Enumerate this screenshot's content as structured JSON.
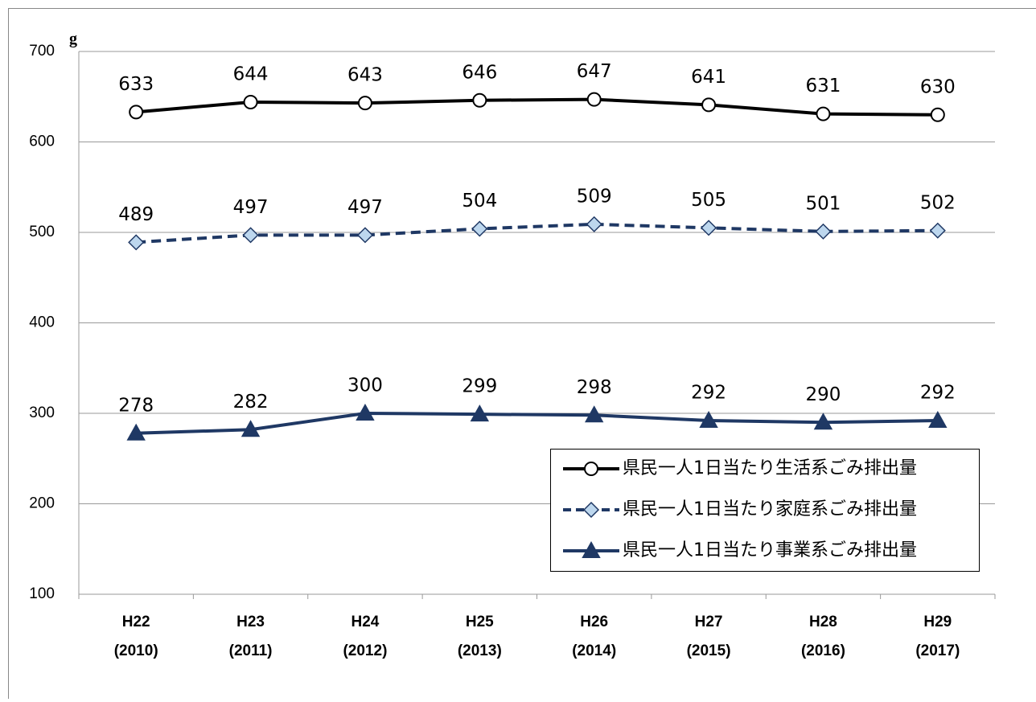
{
  "chart_data": {
    "type": "line",
    "ylabel": "g",
    "categories": [
      [
        "H22",
        "(2010)"
      ],
      [
        "H23",
        "(2011)"
      ],
      [
        "H24",
        "(2012)"
      ],
      [
        "H25",
        "(2013)"
      ],
      [
        "H26",
        "(2014)"
      ],
      [
        "H27",
        "(2015)"
      ],
      [
        "H28",
        "(2016)"
      ],
      [
        "H29",
        "(2017)"
      ]
    ],
    "series": [
      {
        "name": "県民一人1日当たり生活系ごみ排出量",
        "color": "#000000",
        "marker": "circle",
        "marker_fill": "#ffffff",
        "dashed": false,
        "values": [
          633,
          644,
          643,
          646,
          647,
          641,
          631,
          630
        ]
      },
      {
        "name": "県民一人1日当たり家庭系ごみ排出量",
        "color": "#1f3864",
        "marker": "diamond",
        "marker_fill": "#bdd7ee",
        "dashed": true,
        "values": [
          489,
          497,
          497,
          504,
          509,
          505,
          501,
          502
        ]
      },
      {
        "name": "県民一人1日当たり事業系ごみ排出量",
        "color": "#1f3864",
        "marker": "triangle",
        "marker_fill": "#1f3864",
        "dashed": false,
        "values": [
          278,
          282,
          300,
          299,
          298,
          292,
          290,
          292
        ]
      }
    ],
    "ylim": [
      100,
      700
    ],
    "yticks": [
      100,
      200,
      300,
      400,
      500,
      600,
      700
    ],
    "grid": true,
    "legend": "lower right"
  }
}
